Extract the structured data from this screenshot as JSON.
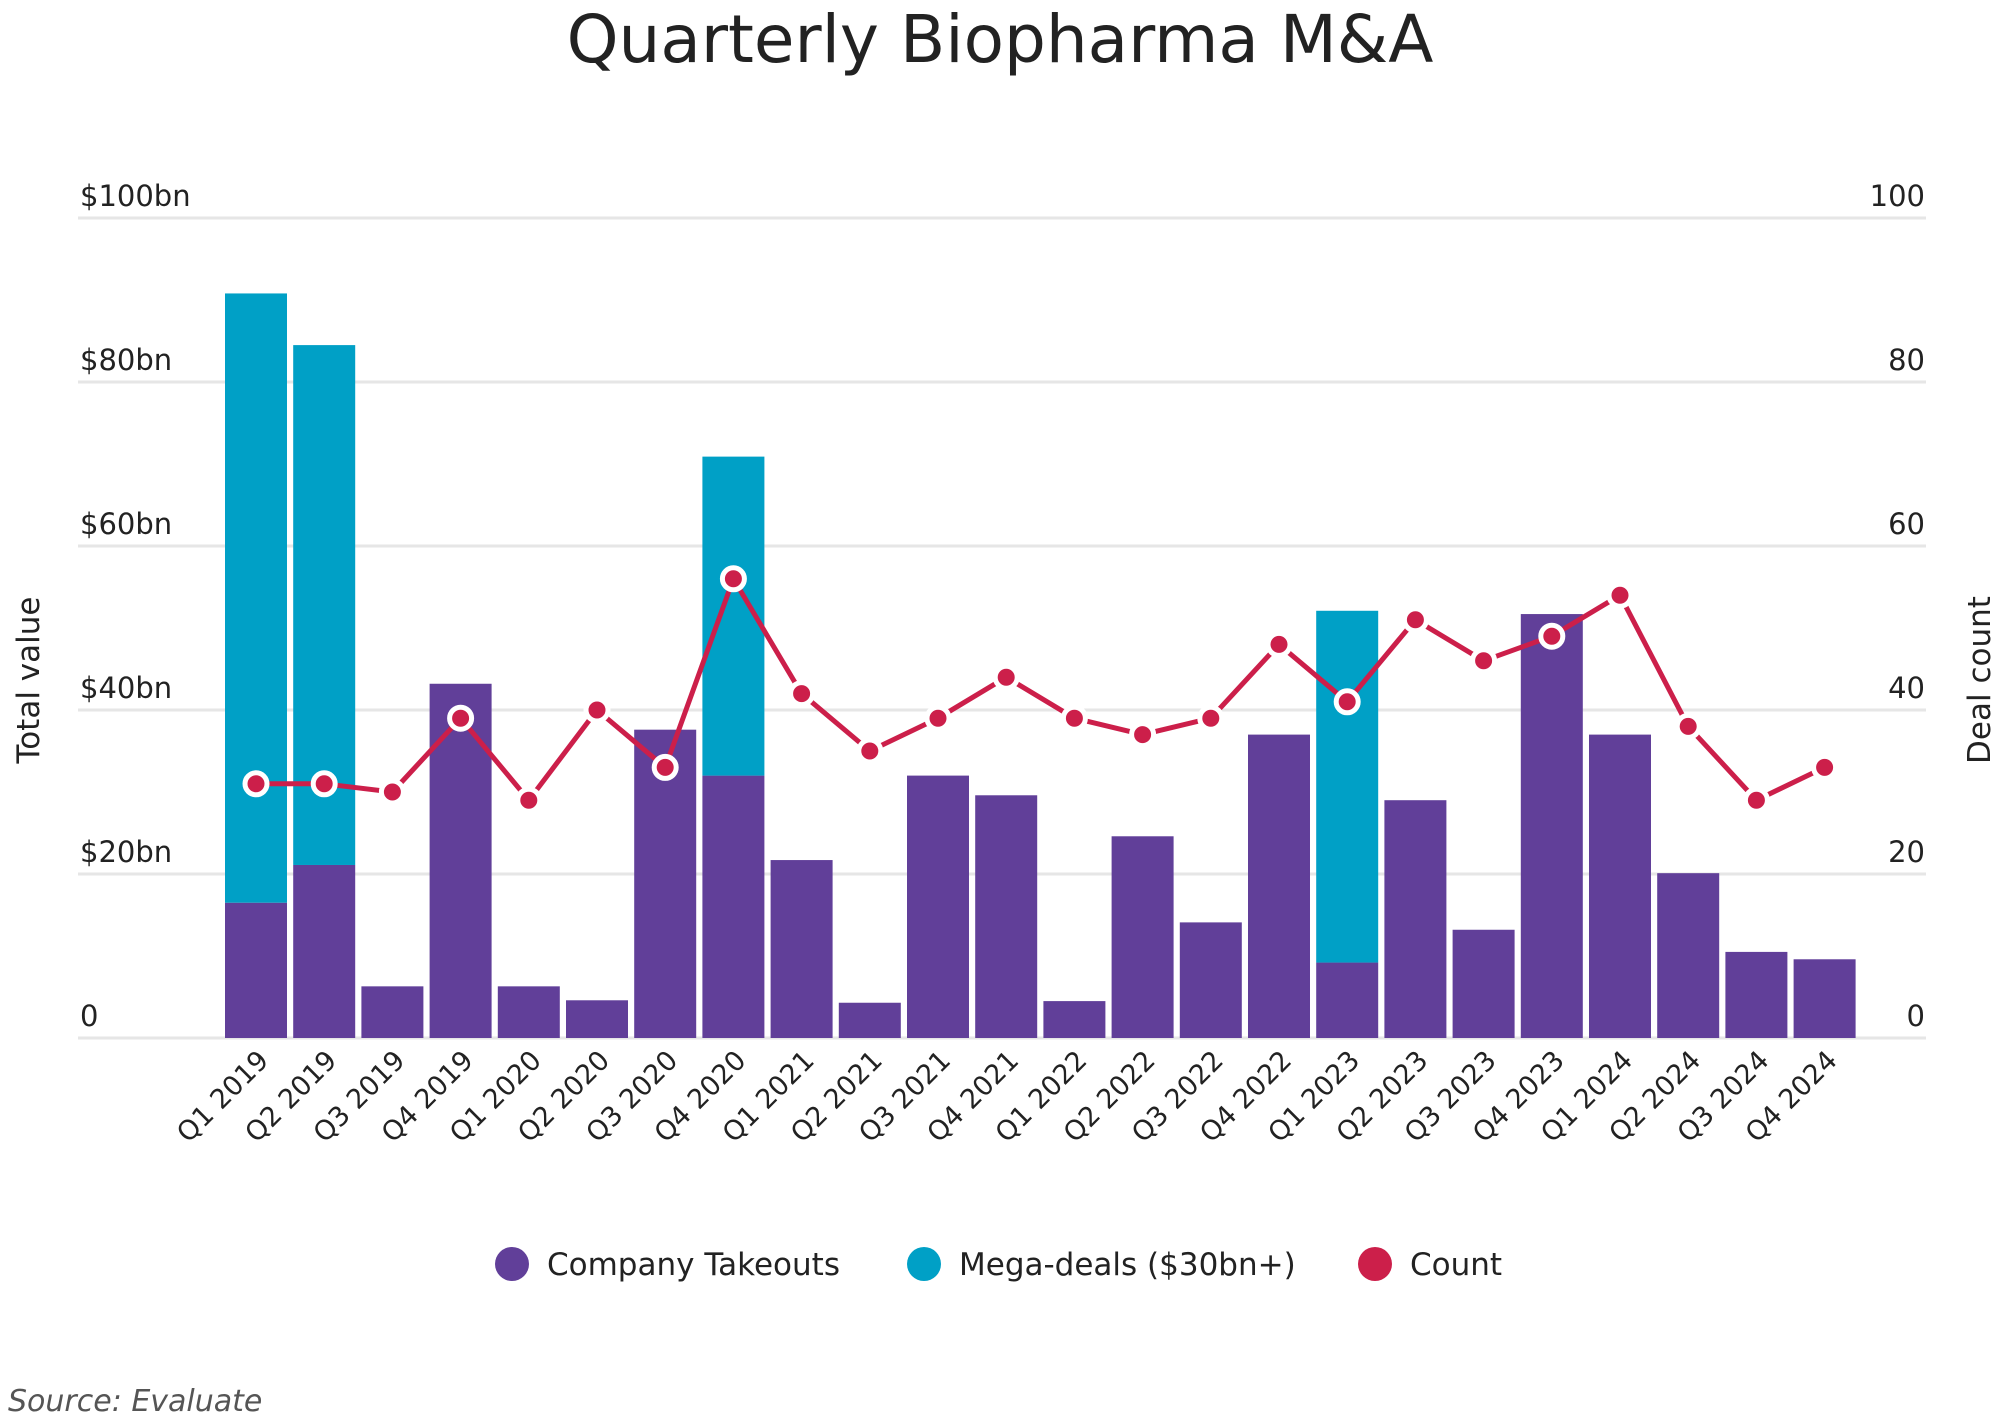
{
  "chart_data": {
    "type": "bar",
    "title": "Quarterly Biopharma M&A",
    "categories": [
      "Q1 2019",
      "Q2 2019",
      "Q3 2019",
      "Q4 2019",
      "Q1 2020",
      "Q2 2020",
      "Q3 2020",
      "Q4 2020",
      "Q1 2021",
      "Q2 2021",
      "Q3 2021",
      "Q4 2021",
      "Q1 2022",
      "Q2 2022",
      "Q3 2022",
      "Q4 2022",
      "Q1 2023",
      "Q2 2023",
      "Q3 2023",
      "Q4 2023",
      "Q1 2024",
      "Q2 2024",
      "Q3 2024",
      "Q4 2024"
    ],
    "series": [
      {
        "name": "Company Takeouts",
        "kind": "stacked-bar",
        "axis": "left",
        "color": "#613f99",
        "values": [
          16.5,
          21.1,
          6.3,
          43.2,
          6.3,
          4.6,
          37.6,
          32.0,
          21.7,
          4.3,
          32.0,
          29.6,
          4.5,
          24.6,
          14.1,
          37.0,
          9.2,
          29.0,
          13.2,
          51.7,
          37.0,
          20.1,
          10.5,
          9.6
        ]
      },
      {
        "name": "Mega-deals ($30bn+)",
        "kind": "stacked-bar",
        "axis": "left",
        "color": "#00a0c6",
        "values": [
          74.3,
          63.4,
          0,
          0,
          0,
          0,
          0,
          38.9,
          0,
          0,
          0,
          0,
          0,
          0,
          0,
          0,
          42.9,
          0,
          0,
          0,
          0,
          0,
          0,
          0
        ]
      },
      {
        "name": "Count",
        "kind": "line",
        "axis": "right",
        "color": "#cc1f4a",
        "values": [
          31,
          31,
          30,
          39,
          29,
          40,
          33,
          56,
          42,
          35,
          39,
          44,
          39,
          37,
          39,
          48,
          41,
          51,
          46,
          49,
          54,
          38,
          29,
          33
        ]
      }
    ],
    "xlabel": "",
    "ylabel": "Total value",
    "y2label": "Deal count",
    "ylim": [
      0,
      100
    ],
    "y2lim": [
      0,
      100
    ],
    "yticks": [
      0,
      20,
      40,
      60,
      80,
      100
    ],
    "ytick_labels": [
      "0",
      "$20bn",
      "$40bn",
      "$60bn",
      "$80bn",
      "$100bn"
    ],
    "y2ticks": [
      0,
      20,
      40,
      60,
      80,
      100
    ],
    "y2tick_labels": [
      "0",
      "20",
      "40",
      "60",
      "80",
      "100"
    ],
    "grid": true,
    "legend": "bottom-center",
    "xtick_rotation_deg": -45
  },
  "legend": [
    {
      "label": "Company Takeouts",
      "color": "#613f99"
    },
    {
      "label": "Mega-deals ($30bn+)",
      "color": "#00a0c6"
    },
    {
      "label": "Count",
      "color": "#cc1f4a"
    }
  ],
  "source": "Source: Evaluate"
}
